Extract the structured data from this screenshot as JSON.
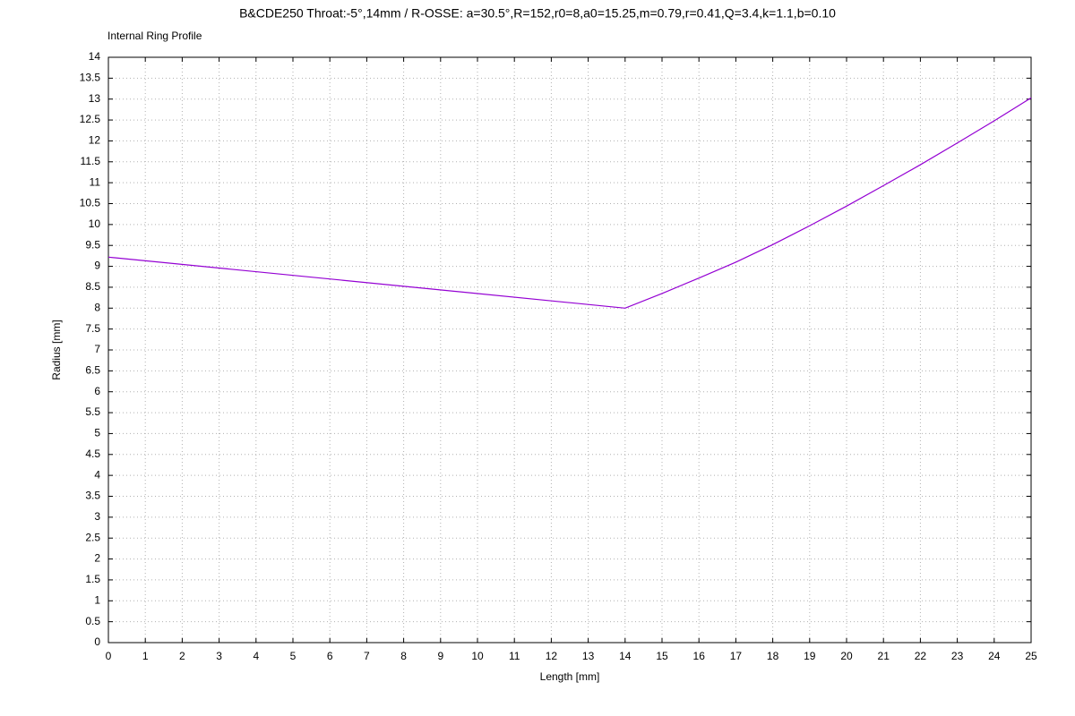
{
  "chart_data": {
    "type": "line",
    "title": "B&CDE250 Throat:-5°,14mm / R-OSSE: a=30.5°,R=152,r0=8,a0=15.25,m=0.79,r=0.41,Q=3.4,k=1.1,b=0.10",
    "subtitle": "Internal Ring Profile",
    "x_label": "Length [mm]",
    "y_label": "Radius [mm]",
    "x": [
      0,
      14,
      15,
      16,
      17,
      18,
      19,
      20,
      21,
      22,
      23,
      24,
      25
    ],
    "values": [
      9.22,
      8.0,
      8.35,
      8.72,
      9.1,
      9.52,
      9.97,
      10.44,
      10.93,
      11.43,
      11.95,
      12.48,
      13.03
    ],
    "color": "#9400d3",
    "xlim": [
      0,
      25
    ],
    "xticks": [
      0,
      1,
      2,
      3,
      4,
      5,
      6,
      7,
      8,
      9,
      10,
      11,
      12,
      13,
      14,
      15,
      16,
      17,
      18,
      19,
      20,
      21,
      22,
      23,
      24,
      25
    ],
    "ylim": [
      0,
      14
    ],
    "yticks": [
      0,
      0.5,
      1,
      1.5,
      2,
      2.5,
      3,
      3.5,
      4,
      4.5,
      5,
      5.5,
      6,
      6.5,
      7,
      7.5,
      8,
      8.5,
      9,
      9.5,
      10,
      10.5,
      11,
      11.5,
      12,
      12.5,
      13,
      13.5,
      14
    ],
    "grid": true
  }
}
